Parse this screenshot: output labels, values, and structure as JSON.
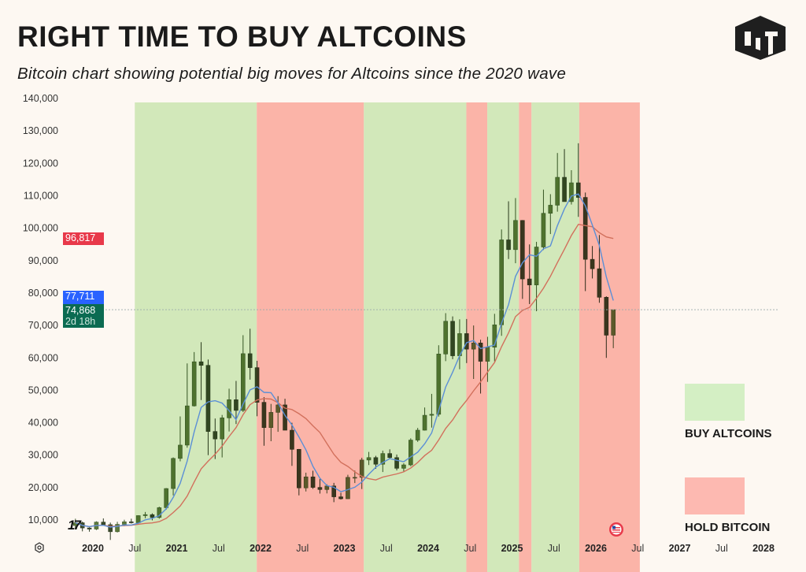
{
  "header": {
    "title": "RIGHT TIME TO BUY ALTCOINS",
    "subtitle": "Bitcoin chart showing potential big moves for Altcoins since the 2020 wave",
    "logo_text": "CLT"
  },
  "legend": {
    "buy": {
      "label": "BUY ALTCOINS",
      "color": "#d4efc4"
    },
    "hold": {
      "label": "HOLD BITCOIN",
      "color": "#fdb9b1"
    }
  },
  "price_tags": {
    "slow_ma": {
      "value": "96,817",
      "color": "#e8394a"
    },
    "fast_ma": {
      "value": "77,711",
      "color": "#2962ff"
    },
    "last_price": {
      "value": "74,868",
      "countdown": "2d 18h",
      "color": "#0b6b52"
    }
  },
  "icons": {
    "settings": "gear-icon",
    "watermark": "tradingview-logo-icon",
    "flag": "us-flag-icon"
  },
  "chart_data": {
    "type": "candlestick",
    "title": "RIGHT TIME TO BUY ALTCOINS",
    "ylim": [
      0,
      140000
    ],
    "y_ticks": [
      10000,
      20000,
      30000,
      40000,
      50000,
      60000,
      70000,
      80000,
      90000,
      100000,
      110000,
      120000,
      130000,
      140000
    ],
    "y_tick_labels": [
      "10,000",
      "20,000",
      "30,000",
      "40,000",
      "50,000",
      "60,000",
      "70,000",
      "80,000",
      "90,000",
      "100,000",
      "110,000",
      "120,000",
      "130,000",
      "140,000"
    ],
    "x_ticks": [
      {
        "date": "2020-01",
        "label": "2020",
        "year": true
      },
      {
        "date": "2020-07",
        "label": "Jul"
      },
      {
        "date": "2021-01",
        "label": "2021",
        "year": true
      },
      {
        "date": "2021-07",
        "label": "Jul"
      },
      {
        "date": "2022-01",
        "label": "2022",
        "year": true
      },
      {
        "date": "2022-07",
        "label": "Jul"
      },
      {
        "date": "2023-01",
        "label": "2023",
        "year": true
      },
      {
        "date": "2023-07",
        "label": "Jul"
      },
      {
        "date": "2024-01",
        "label": "2024",
        "year": true
      },
      {
        "date": "2024-07",
        "label": "Jul"
      },
      {
        "date": "2025-01",
        "label": "2025",
        "year": true
      },
      {
        "date": "2025-07",
        "label": "Jul"
      },
      {
        "date": "2026-01",
        "label": "2026",
        "year": true
      },
      {
        "date": "2026-07",
        "label": "Jul"
      },
      {
        "date": "2027-01",
        "label": "2027",
        "year": true
      },
      {
        "date": "2027-07",
        "label": "Jul"
      },
      {
        "date": "2028-01",
        "label": "2028",
        "year": true
      }
    ],
    "zones": [
      {
        "type": "buy",
        "start": "2020-07-01",
        "end": "2021-12-15"
      },
      {
        "type": "hold",
        "start": "2021-12-15",
        "end": "2023-03-25"
      },
      {
        "type": "buy",
        "start": "2023-03-25",
        "end": "2024-06-15"
      },
      {
        "type": "hold",
        "start": "2024-06-15",
        "end": "2024-09-15"
      },
      {
        "type": "buy",
        "start": "2024-09-15",
        "end": "2025-02-01"
      },
      {
        "type": "hold",
        "start": "2025-02-01",
        "end": "2025-03-25"
      },
      {
        "type": "buy",
        "start": "2025-03-25",
        "end": "2025-10-20"
      },
      {
        "type": "hold",
        "start": "2025-10-20",
        "end": "2026-07-10"
      }
    ],
    "last_price": 74868,
    "ma_fast_last": 77711,
    "ma_slow_last": 96817,
    "candles": [
      [
        "2019-10",
        8300,
        10400,
        7300,
        9150
      ],
      [
        "2019-11",
        9150,
        9500,
        6500,
        7550
      ],
      [
        "2019-12",
        7550,
        7750,
        6400,
        7200
      ],
      [
        "2020-01",
        7200,
        9600,
        6900,
        9350
      ],
      [
        "2020-02",
        9350,
        10500,
        8450,
        8550
      ],
      [
        "2020-03",
        8550,
        9200,
        3850,
        6400
      ],
      [
        "2020-04",
        6400,
        9450,
        6150,
        8650
      ],
      [
        "2020-05",
        8650,
        10080,
        8100,
        9450
      ],
      [
        "2020-06",
        9450,
        10400,
        8900,
        9150
      ],
      [
        "2020-07",
        9150,
        11450,
        8950,
        11350
      ],
      [
        "2020-08",
        11350,
        12470,
        10550,
        11650
      ],
      [
        "2020-09",
        11650,
        12050,
        9900,
        10780
      ],
      [
        "2020-10",
        10780,
        14100,
        10400,
        13800
      ],
      [
        "2020-11",
        13800,
        19850,
        13200,
        19700
      ],
      [
        "2020-12",
        19700,
        29300,
        17600,
        29000
      ],
      [
        "2021-01",
        29000,
        41950,
        28100,
        33100
      ],
      [
        "2021-02",
        33100,
        58300,
        32300,
        45200
      ],
      [
        "2021-03",
        45200,
        61800,
        45000,
        58800
      ],
      [
        "2021-04",
        58800,
        64850,
        47000,
        57700
      ],
      [
        "2021-05",
        57700,
        59500,
        30000,
        37300
      ],
      [
        "2021-06",
        37300,
        41300,
        28800,
        35000
      ],
      [
        "2021-07",
        35000,
        42400,
        29300,
        41500
      ],
      [
        "2021-08",
        41500,
        50500,
        37300,
        47100
      ],
      [
        "2021-09",
        47100,
        52900,
        39600,
        43800
      ],
      [
        "2021-10",
        43800,
        67000,
        43300,
        61300
      ],
      [
        "2021-11",
        61300,
        69000,
        53300,
        57000
      ],
      [
        "2021-12",
        57000,
        59100,
        42000,
        46300
      ],
      [
        "2022-01",
        46300,
        47900,
        32900,
        38500
      ],
      [
        "2022-02",
        38500,
        45800,
        34300,
        43200
      ],
      [
        "2022-03",
        43200,
        48200,
        37200,
        45500
      ],
      [
        "2022-04",
        45500,
        47400,
        37700,
        37700
      ],
      [
        "2022-05",
        37700,
        40000,
        26700,
        31800
      ],
      [
        "2022-06",
        31800,
        31900,
        17600,
        19900
      ],
      [
        "2022-07",
        19900,
        24600,
        18800,
        23300
      ],
      [
        "2022-08",
        23300,
        25200,
        19600,
        20050
      ],
      [
        "2022-09",
        20050,
        22700,
        18150,
        19400
      ],
      [
        "2022-10",
        19400,
        21000,
        18200,
        20500
      ],
      [
        "2022-11",
        20500,
        21450,
        15500,
        17150
      ],
      [
        "2022-12",
        17150,
        18400,
        16300,
        16550
      ],
      [
        "2023-01",
        16550,
        23950,
        16500,
        23150
      ],
      [
        "2023-02",
        23150,
        25250,
        21400,
        23150
      ],
      [
        "2023-03",
        23150,
        29200,
        19550,
        28500
      ],
      [
        "2023-04",
        28500,
        31000,
        26950,
        29250
      ],
      [
        "2023-05",
        29250,
        29800,
        25800,
        27200
      ],
      [
        "2023-06",
        27200,
        31400,
        24800,
        30500
      ],
      [
        "2023-07",
        30500,
        31800,
        28900,
        29250
      ],
      [
        "2023-08",
        29250,
        30200,
        25300,
        25950
      ],
      [
        "2023-09",
        25950,
        27500,
        24900,
        27000
      ],
      [
        "2023-10",
        27000,
        35200,
        26600,
        34650
      ],
      [
        "2023-11",
        34650,
        38400,
        34100,
        37700
      ],
      [
        "2023-12",
        37700,
        44700,
        37600,
        42300
      ],
      [
        "2024-01",
        42300,
        48900,
        38500,
        42600
      ],
      [
        "2024-02",
        42600,
        63900,
        41900,
        61200
      ],
      [
        "2024-03",
        61200,
        73800,
        59000,
        71300
      ],
      [
        "2024-04",
        71300,
        72800,
        59600,
        60650
      ],
      [
        "2024-05",
        60650,
        71900,
        56500,
        67500
      ],
      [
        "2024-06",
        67500,
        72000,
        58400,
        62700
      ],
      [
        "2024-07",
        62700,
        70000,
        53500,
        64600
      ],
      [
        "2024-08",
        64600,
        65600,
        49000,
        58950
      ],
      [
        "2024-09",
        58950,
        66500,
        52600,
        63300
      ],
      [
        "2024-10",
        63300,
        73600,
        58900,
        70200
      ],
      [
        "2024-11",
        70200,
        99600,
        66800,
        96400
      ],
      [
        "2024-12",
        96400,
        108300,
        90500,
        93400
      ],
      [
        "2025-01",
        93400,
        109300,
        89200,
        102400
      ],
      [
        "2025-02",
        102400,
        102500,
        78200,
        84350
      ],
      [
        "2025-03",
        84350,
        95000,
        76600,
        82500
      ],
      [
        "2025-04",
        82500,
        95800,
        74400,
        94200
      ],
      [
        "2025-05",
        94200,
        111900,
        93300,
        104600
      ],
      [
        "2025-06",
        104600,
        110500,
        98200,
        107100
      ],
      [
        "2025-07",
        107100,
        123200,
        105100,
        115700
      ],
      [
        "2025-08",
        115700,
        124400,
        108700,
        108200
      ],
      [
        "2025-09",
        108200,
        117900,
        107300,
        114000
      ],
      [
        "2025-10",
        114000,
        126200,
        103500,
        109500
      ],
      [
        "2025-11",
        109500,
        111000,
        80600,
        90400
      ],
      [
        "2025-12",
        90400,
        94500,
        84500,
        87500
      ],
      [
        "2026-01",
        87500,
        97900,
        77000,
        78700
      ],
      [
        "2026-02",
        78700,
        79000,
        60000,
        67000
      ],
      [
        "2026-03",
        67000,
        74000,
        63000,
        74868
      ]
    ]
  }
}
